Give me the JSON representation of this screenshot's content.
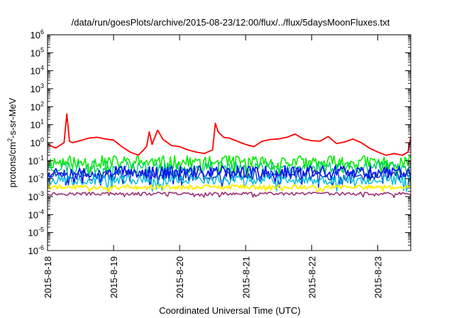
{
  "chart_data": {
    "type": "line",
    "title": "/data/run/goesPlots/archive/2015-08-23/12:00/flux/../flux/5daysMoonFluxes.txt",
    "xlabel": "Coordinated Universal Time (UTC)",
    "ylabel_parts": {
      "pre": "protons/cm",
      "sup": "2",
      "post": "-s-sr-MeV"
    },
    "y_scale": "log",
    "ylim": [
      1e-06,
      1000000.0
    ],
    "y_ticks": [
      {
        "value": 1000000.0,
        "base": "10",
        "exp": "6"
      },
      {
        "value": 100000.0,
        "base": "10",
        "exp": "5"
      },
      {
        "value": 10000.0,
        "base": "10",
        "exp": "4"
      },
      {
        "value": 1000.0,
        "base": "10",
        "exp": "3"
      },
      {
        "value": 100.0,
        "base": "10",
        "exp": "2"
      },
      {
        "value": 10.0,
        "base": "10",
        "exp": "1"
      },
      {
        "value": 1.0,
        "base": "10",
        "exp": "0"
      },
      {
        "value": 0.1,
        "base": "10",
        "exp": "-1"
      },
      {
        "value": 0.01,
        "base": "10",
        "exp": "-2"
      },
      {
        "value": 0.001,
        "base": "10",
        "exp": "-3"
      },
      {
        "value": 0.0001,
        "base": "10",
        "exp": "-4"
      },
      {
        "value": 1e-05,
        "base": "10",
        "exp": "-5"
      },
      {
        "value": 1e-06,
        "base": "10",
        "exp": "-6"
      }
    ],
    "xlim": [
      "2015-08-18T00:00",
      "2015-08-23T12:00"
    ],
    "x_ticks": [
      "2015-8-18",
      "2015-8-19",
      "2015-8-20",
      "2015-8-21",
      "2015-8-22",
      "2015-8-23"
    ],
    "grid": false,
    "legend": "none",
    "series": [
      {
        "color": "#ff0000",
        "width": 1.8,
        "x": [
          "2015-08-18T00:00",
          "2015-08-18T03:00",
          "2015-08-18T06:00",
          "2015-08-18T07:00",
          "2015-08-18T08:00",
          "2015-08-18T09:00",
          "2015-08-18T12:00",
          "2015-08-18T15:00",
          "2015-08-18T18:00",
          "2015-08-18T21:00",
          "2015-08-19T00:00",
          "2015-08-19T03:00",
          "2015-08-19T06:00",
          "2015-08-19T09:00",
          "2015-08-19T12:00",
          "2015-08-19T13:00",
          "2015-08-19T14:00",
          "2015-08-19T16:00",
          "2015-08-19T18:00",
          "2015-08-19T21:00",
          "2015-08-20T00:00",
          "2015-08-20T03:00",
          "2015-08-20T06:00",
          "2015-08-20T09:00",
          "2015-08-20T12:00",
          "2015-08-20T13:00",
          "2015-08-20T14:00",
          "2015-08-20T16:00",
          "2015-08-20T18:00",
          "2015-08-20T21:00",
          "2015-08-21T00:00",
          "2015-08-21T03:00",
          "2015-08-21T06:00",
          "2015-08-21T09:00",
          "2015-08-21T12:00",
          "2015-08-21T15:00",
          "2015-08-21T18:00",
          "2015-08-21T21:00",
          "2015-08-22T00:00",
          "2015-08-22T03:00",
          "2015-08-22T06:00",
          "2015-08-22T09:00",
          "2015-08-22T12:00",
          "2015-08-22T15:00",
          "2015-08-22T18:00",
          "2015-08-22T21:00",
          "2015-08-23T00:00",
          "2015-08-23T03:00",
          "2015-08-23T06:00",
          "2015-08-23T09:00",
          "2015-08-23T11:00",
          "2015-08-23T12:00"
        ],
        "y": [
          0.8,
          0.5,
          1.0,
          40,
          1.2,
          1.0,
          1.3,
          1.8,
          2.0,
          1.6,
          1.4,
          0.6,
          0.3,
          0.2,
          0.6,
          4.0,
          0.8,
          5.0,
          1.5,
          0.7,
          0.6,
          0.4,
          0.3,
          0.25,
          0.4,
          12,
          4.0,
          2.0,
          1.8,
          1.2,
          0.8,
          0.6,
          1.2,
          1.5,
          1.6,
          2.0,
          3.0,
          1.6,
          1.3,
          1.2,
          2.2,
          0.9,
          1.1,
          1.6,
          1.0,
          0.5,
          0.3,
          0.2,
          0.25,
          0.2,
          0.3,
          2.0
        ]
      },
      {
        "color": "#00ee00",
        "width": 1.6,
        "base": 0.075,
        "spread": 0.75,
        "seed": 11,
        "x": [
          "2015-08-18T00:00",
          "2015-08-23T12:00"
        ],
        "y": [
          0.075,
          0.075
        ]
      },
      {
        "color": "#00cc66",
        "width": 1.4,
        "base": 0.04,
        "spread": 0.7,
        "seed": 23,
        "x": [
          "2015-08-18T00:00",
          "2015-08-23T12:00"
        ],
        "y": [
          0.04,
          0.04
        ]
      },
      {
        "color": "#0000ff",
        "width": 1.6,
        "base": 0.022,
        "spread": 0.7,
        "seed": 37,
        "x": [
          "2015-08-18T00:00",
          "2015-08-23T12:00"
        ],
        "y": [
          0.022,
          0.022
        ]
      },
      {
        "color": "#0033cc",
        "width": 1.4,
        "base": 0.014,
        "spread": 0.6,
        "seed": 51,
        "x": [
          "2015-08-18T00:00",
          "2015-08-23T12:00"
        ],
        "y": [
          0.014,
          0.014
        ]
      },
      {
        "color": "#00bbdd",
        "width": 1.4,
        "base": 0.008,
        "spread": 0.55,
        "seed": 67,
        "x": [
          "2015-08-18T00:00",
          "2015-08-23T12:00"
        ],
        "y": [
          0.008,
          0.008
        ]
      },
      {
        "color": "#ffee00",
        "width": 2.0,
        "base": 0.0033,
        "spread": 0.25,
        "seed": 79,
        "x": [
          "2015-08-18T00:00",
          "2015-08-23T12:00"
        ],
        "y": [
          0.0033,
          0.0033
        ]
      },
      {
        "color": "#993377",
        "width": 1.6,
        "base": 0.0014,
        "spread": 0.18,
        "seed": 97,
        "x": [
          "2015-08-18T00:00",
          "2015-08-23T12:00"
        ],
        "y": [
          0.0014,
          0.0014
        ]
      }
    ]
  }
}
